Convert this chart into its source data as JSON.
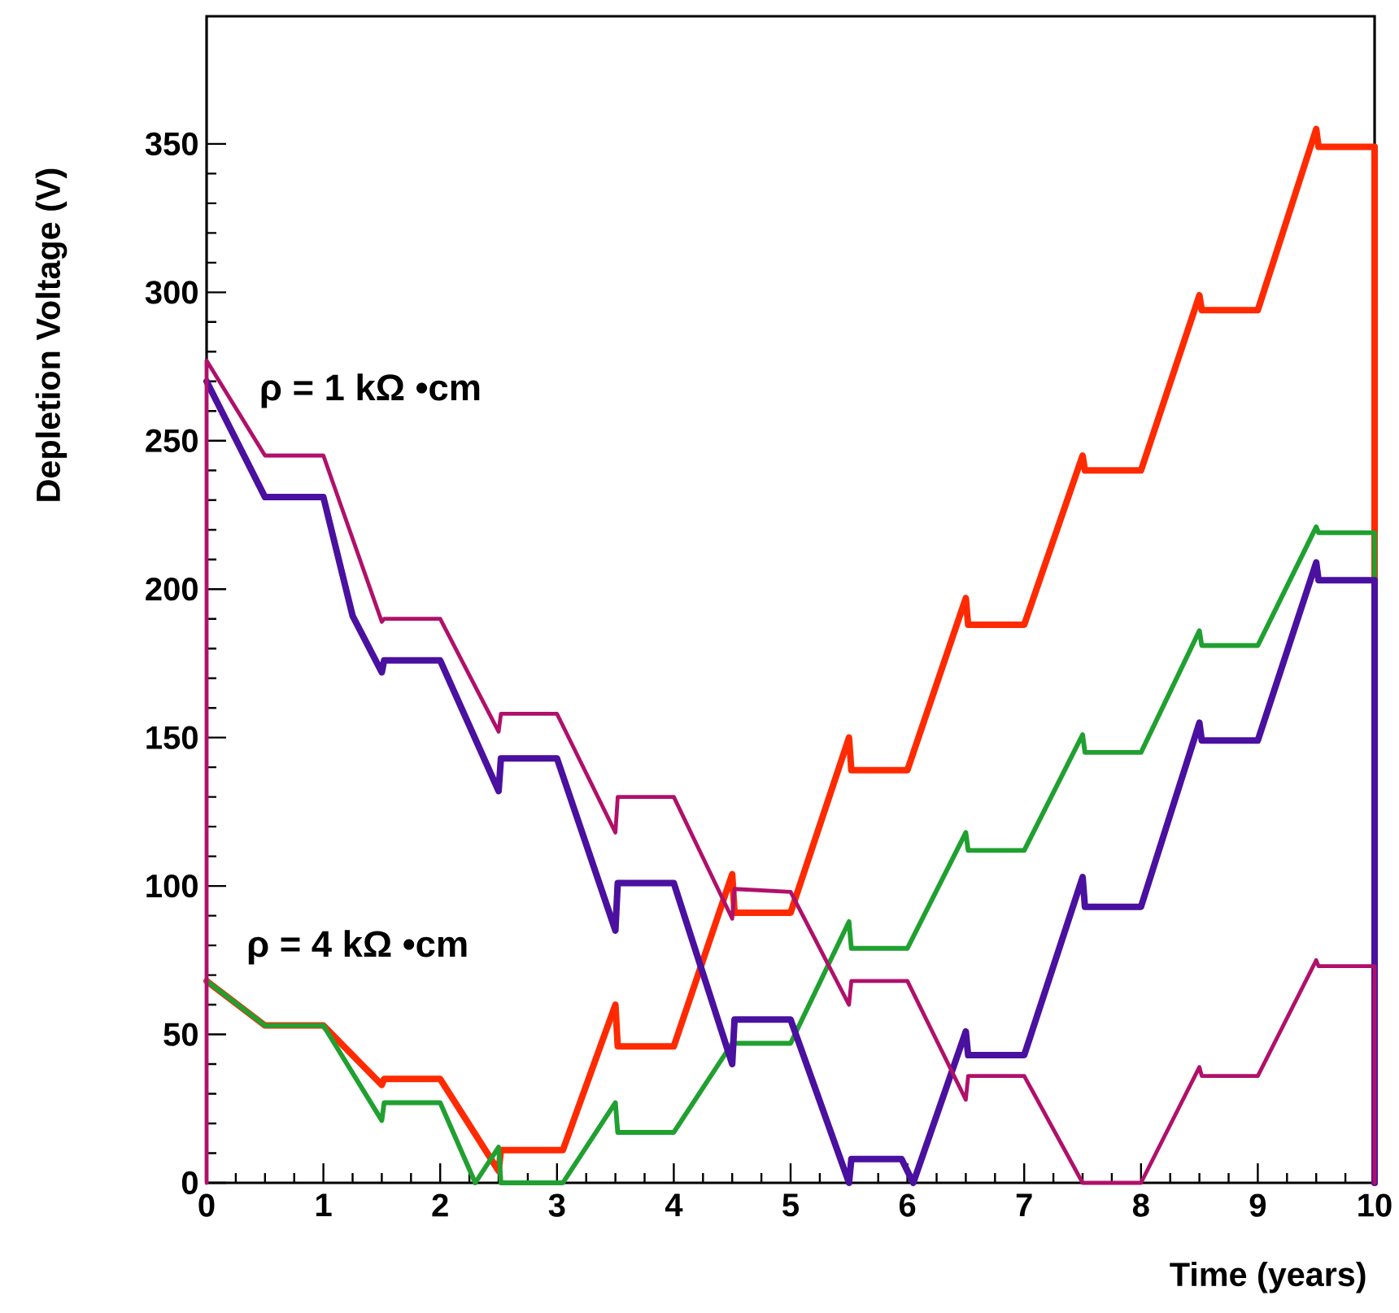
{
  "chart_data": {
    "type": "line",
    "xlabel": "Time (years)",
    "ylabel": "Depletion Voltage (V)",
    "xlim": [
      0,
      10
    ],
    "ylim": [
      0,
      393
    ],
    "xticks": [
      0,
      1,
      2,
      3,
      4,
      5,
      6,
      7,
      8,
      9,
      10
    ],
    "yticks": [
      0,
      50,
      100,
      150,
      200,
      250,
      300,
      350
    ],
    "annotations": [
      "ρ = 1 kΩ •cm",
      "ρ = 4 kΩ •cm"
    ],
    "series": [
      {
        "color": "#ff2a00",
        "x": [
          0,
          0.5,
          1,
          1.5,
          1.52,
          2,
          2.5,
          2.52,
          3.05,
          3.5,
          3.52,
          4,
          4.5,
          4.52,
          5,
          5.5,
          5.52,
          6,
          6.5,
          6.52,
          7,
          7.5,
          7.52,
          8,
          8.5,
          8.52,
          9,
          9.5,
          9.52,
          10,
          10
        ],
        "values": [
          68,
          53,
          53,
          33,
          35,
          35,
          4,
          11,
          11,
          60,
          46,
          46,
          104,
          91,
          91,
          150,
          139,
          139,
          197,
          188,
          188,
          245,
          240,
          240,
          299,
          294,
          294,
          355,
          349,
          349,
          0
        ]
      },
      {
        "color": "#20a030",
        "x": [
          0,
          0.5,
          1,
          1.5,
          1.52,
          2,
          2.3,
          2.5,
          2.52,
          3.05,
          3.5,
          3.52,
          4,
          4.5,
          5,
          5.5,
          5.52,
          6,
          6.5,
          6.52,
          7,
          7.5,
          7.52,
          8,
          8.5,
          8.52,
          9,
          9.5,
          9.52,
          10,
          10
        ],
        "values": [
          68,
          53,
          53,
          21,
          27,
          27,
          0,
          12,
          0,
          0,
          27,
          17,
          17,
          47,
          47,
          88,
          79,
          79,
          118,
          112,
          112,
          151,
          145,
          145,
          186,
          181,
          181,
          221,
          219,
          219,
          0
        ]
      },
      {
        "color": "#4a10a0",
        "x": [
          0,
          0.5,
          1,
          1.25,
          1.5,
          1.52,
          2,
          2.5,
          2.52,
          3,
          3.5,
          3.52,
          4,
          4.5,
          4.52,
          5,
          5.5,
          5.52,
          5.95,
          6.05,
          6.5,
          6.52,
          7,
          7.5,
          7.52,
          8,
          8.5,
          8.52,
          9,
          9.5,
          9.52,
          10,
          10
        ],
        "values": [
          270,
          231,
          231,
          191,
          172,
          176,
          176,
          132,
          143,
          143,
          85,
          101,
          101,
          40,
          55,
          55,
          0,
          8,
          8,
          0,
          51,
          43,
          43,
          103,
          93,
          93,
          155,
          149,
          149,
          209,
          203,
          203,
          0
        ]
      },
      {
        "color": "#b0106a",
        "x": [
          0,
          0,
          0.5,
          1,
          1.5,
          1.52,
          2,
          2.5,
          2.52,
          3,
          3.5,
          3.52,
          4,
          4.5,
          4.52,
          5,
          5.5,
          5.52,
          6,
          6.5,
          6.52,
          7,
          7.5,
          8,
          8.5,
          8.52,
          9,
          9.5,
          9.52,
          10,
          10
        ],
        "values": [
          0,
          277,
          245,
          245,
          189,
          190,
          190,
          152,
          158,
          158,
          118,
          130,
          130,
          89,
          99,
          98,
          60,
          68,
          68,
          28,
          36,
          36,
          0,
          0,
          39,
          36,
          36,
          75,
          73,
          73,
          0
        ]
      }
    ]
  }
}
